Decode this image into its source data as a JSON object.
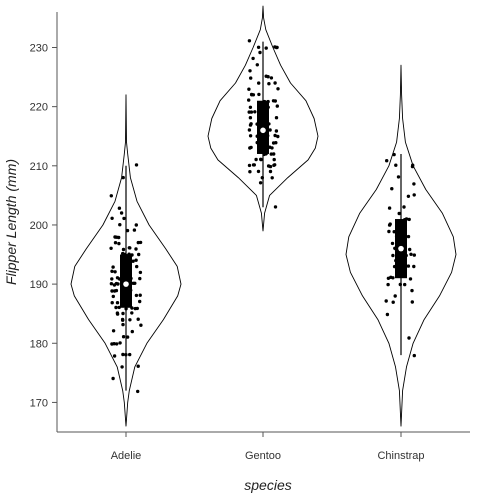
{
  "chart_data": {
    "type": "violin",
    "title": "",
    "xlabel": "species",
    "ylabel": "Flipper Length (mm)",
    "categories": [
      "Adelie",
      "Gentoo",
      "Chinstrap"
    ],
    "ylim": [
      165,
      236
    ],
    "yticks": [
      170,
      180,
      190,
      200,
      210,
      220,
      230
    ],
    "grid": false,
    "legend": "none",
    "colors": {
      "line": "#000000",
      "points": "#000000",
      "median": "#ffffff",
      "background": "#ffffff"
    },
    "series": [
      {
        "category": "Adelie",
        "min": 172,
        "q1": 186,
        "median": 190,
        "q3": 195,
        "max": 210,
        "density": [
          [
            166,
            0
          ],
          [
            170,
            0.03
          ],
          [
            172,
            0.06
          ],
          [
            176,
            0.16
          ],
          [
            180,
            0.38
          ],
          [
            184,
            0.68
          ],
          [
            188,
            0.94
          ],
          [
            190,
            1.0
          ],
          [
            193,
            0.93
          ],
          [
            196,
            0.72
          ],
          [
            200,
            0.42
          ],
          [
            204,
            0.2
          ],
          [
            208,
            0.08
          ],
          [
            212,
            0.03
          ],
          [
            214,
            0.01
          ],
          [
            222,
            0
          ]
        ],
        "points": [
          172,
          174,
          176,
          176,
          178,
          178,
          178,
          178,
          180,
          180,
          180,
          180,
          181,
          181,
          182,
          182,
          183,
          183,
          184,
          184,
          184,
          184,
          185,
          185,
          185,
          185,
          186,
          186,
          186,
          186,
          186,
          186,
          187,
          187,
          187,
          187,
          187,
          188,
          188,
          188,
          188,
          188,
          189,
          189,
          189,
          189,
          189,
          189,
          190,
          190,
          190,
          190,
          190,
          190,
          190,
          190,
          190,
          190,
          191,
          191,
          191,
          191,
          191,
          191,
          192,
          192,
          192,
          192,
          193,
          193,
          193,
          193,
          193,
          193,
          194,
          194,
          194,
          195,
          195,
          195,
          195,
          195,
          195,
          195,
          196,
          196,
          196,
          196,
          196,
          197,
          197,
          197,
          197,
          198,
          198,
          198,
          199,
          199,
          200,
          200,
          201,
          201,
          202,
          203,
          205,
          208,
          210
        ]
      },
      {
        "category": "Gentoo",
        "min": 203,
        "q1": 212,
        "median": 216,
        "q3": 221,
        "max": 231,
        "density": [
          [
            199,
            0
          ],
          [
            202,
            0.03
          ],
          [
            205,
            0.12
          ],
          [
            208,
            0.45
          ],
          [
            211,
            0.82
          ],
          [
            213,
            0.95
          ],
          [
            215,
            1.0
          ],
          [
            218,
            0.93
          ],
          [
            221,
            0.78
          ],
          [
            224,
            0.5
          ],
          [
            227,
            0.32
          ],
          [
            230,
            0.18
          ],
          [
            233,
            0.05
          ],
          [
            235,
            0.01
          ],
          [
            237,
            0
          ]
        ],
        "points": [
          203,
          207,
          208,
          208,
          209,
          209,
          209,
          210,
          210,
          210,
          210,
          210,
          210,
          210,
          211,
          211,
          211,
          211,
          212,
          212,
          212,
          212,
          212,
          213,
          213,
          213,
          213,
          213,
          213,
          214,
          214,
          214,
          214,
          214,
          215,
          215,
          215,
          215,
          215,
          215,
          215,
          216,
          216,
          216,
          216,
          216,
          216,
          217,
          217,
          217,
          217,
          217,
          218,
          218,
          218,
          218,
          219,
          219,
          219,
          219,
          220,
          220,
          220,
          220,
          220,
          221,
          221,
          221,
          221,
          221,
          222,
          222,
          222,
          222,
          223,
          223,
          224,
          224,
          224,
          225,
          225,
          225,
          225,
          226,
          227,
          228,
          229,
          230,
          230,
          230,
          230,
          230,
          231
        ]
      },
      {
        "category": "Chinstrap",
        "min": 178,
        "q1": 191,
        "median": 196,
        "q3": 201,
        "max": 212,
        "density": [
          [
            166,
            0
          ],
          [
            172,
            0.03
          ],
          [
            176,
            0.1
          ],
          [
            180,
            0.22
          ],
          [
            184,
            0.42
          ],
          [
            188,
            0.7
          ],
          [
            192,
            0.92
          ],
          [
            195,
            1.0
          ],
          [
            198,
            0.95
          ],
          [
            202,
            0.75
          ],
          [
            206,
            0.45
          ],
          [
            210,
            0.22
          ],
          [
            214,
            0.08
          ],
          [
            218,
            0.03
          ],
          [
            222,
            0.01
          ],
          [
            227,
            0
          ]
        ],
        "points": [
          178,
          181,
          185,
          187,
          187,
          187,
          188,
          189,
          190,
          190,
          190,
          191,
          191,
          191,
          191,
          192,
          192,
          193,
          193,
          193,
          194,
          195,
          195,
          195,
          195,
          195,
          196,
          196,
          196,
          196,
          196,
          197,
          197,
          197,
          198,
          198,
          198,
          199,
          199,
          199,
          200,
          200,
          200,
          201,
          201,
          201,
          202,
          203,
          203,
          205,
          205,
          206,
          207,
          208,
          210,
          210,
          210,
          211,
          212
        ]
      }
    ]
  }
}
